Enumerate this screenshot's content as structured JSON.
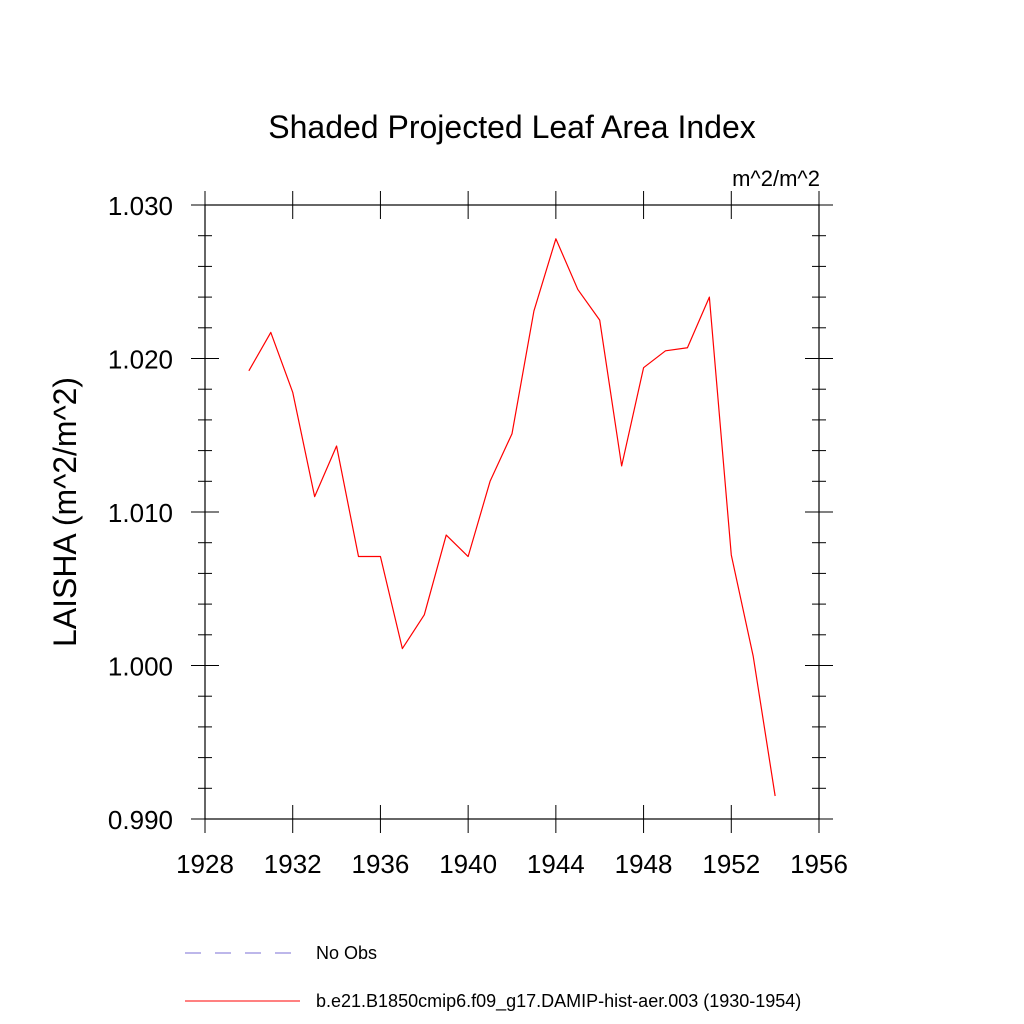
{
  "chart_data": {
    "type": "line",
    "title": "Shaded Projected Leaf Area Index",
    "units": "m^2/m^2",
    "ylabel": "LAISHA  (m^2/m^2)",
    "xlabel": "",
    "xlim": [
      1928,
      1956
    ],
    "ylim": [
      0.99,
      1.03
    ],
    "xticks": [
      1928,
      1932,
      1936,
      1940,
      1944,
      1948,
      1952,
      1956
    ],
    "xtick_labels": [
      "1928",
      "1932",
      "1936",
      "1940",
      "1944",
      "1948",
      "1952",
      "1956"
    ],
    "yticks": [
      0.99,
      1.0,
      1.01,
      1.02,
      1.03
    ],
    "ytick_labels": [
      "0.990",
      "1.000",
      "1.010",
      "1.020",
      "1.030"
    ],
    "grid": false,
    "legend_position": "bottom",
    "series": [
      {
        "name": "b.e21.B1850cmip6.f09_g17.DAMIP-hist-aer.003 (1930-1954)",
        "color": "#ff0000",
        "style": "solid",
        "x": [
          1930,
          1931,
          1932,
          1933,
          1934,
          1935,
          1936,
          1937,
          1938,
          1939,
          1940,
          1941,
          1942,
          1943,
          1944,
          1945,
          1946,
          1947,
          1948,
          1949,
          1950,
          1951,
          1952,
          1953,
          1954
        ],
        "y": [
          1.0192,
          1.0217,
          1.0178,
          1.011,
          1.0143,
          1.0071,
          1.0071,
          1.0011,
          1.0033,
          1.0085,
          1.0071,
          1.012,
          1.0151,
          1.0231,
          1.0278,
          1.0245,
          1.0225,
          1.013,
          1.0194,
          1.0205,
          1.0207,
          1.024,
          1.0072,
          1.0006,
          0.9915
        ]
      }
    ],
    "legend": [
      {
        "label": "No Obs",
        "color": "#7b6fd6",
        "style": "dashed"
      },
      {
        "label": "b.e21.B1850cmip6.f09_g17.DAMIP-hist-aer.003 (1930-1954)",
        "color": "#ff0000",
        "style": "solid"
      }
    ]
  }
}
